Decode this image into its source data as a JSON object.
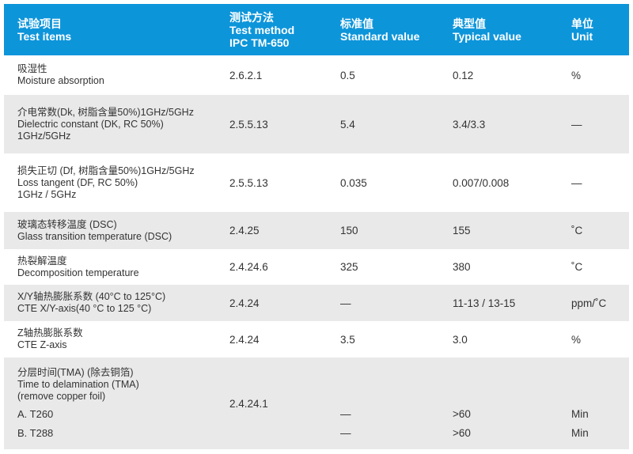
{
  "header": {
    "item_cn": "试验项目",
    "item_en": "Test items",
    "method_cn": "测试方法",
    "method_en": "Test method",
    "method_std": "IPC TM-650",
    "standard_cn": "标准值",
    "standard_en": "Standard value",
    "typical_cn": "典型值",
    "typical_en": "Typical value",
    "unit_cn": "单位",
    "unit_en": "Unit"
  },
  "colors": {
    "header_bg": "#0d95da",
    "stripe": "#e9e9e9"
  },
  "rows": [
    {
      "item": [
        "吸湿性",
        "Moisture absorption"
      ],
      "method": "2.6.2.1",
      "standard": "0.5",
      "typical": "0.12",
      "unit": "%"
    },
    {
      "item": [
        "介电常数(Dk, 树脂含量50%)1GHz/5GHz",
        "Dielectric constant (DK, RC 50%)",
        "1GHz/5GHz"
      ],
      "method": "2.5.5.13",
      "standard": "5.4",
      "typical": "3.4/3.3",
      "unit": "—"
    },
    {
      "item": [
        "损失正切 (Df, 树脂含量50%)1GHz/5GHz",
        "Loss tangent (DF, RC 50%)",
        "1GHz / 5GHz"
      ],
      "method": "2.5.5.13",
      "standard": "0.035",
      "typical": "0.007/0.008",
      "unit": "—"
    },
    {
      "item": [
        "玻璃态转移温度 (DSC)",
        "Glass transition temperature (DSC)"
      ],
      "method": "2.4.25",
      "standard": "150",
      "typical": "155",
      "unit": "˚C"
    },
    {
      "item": [
        "热裂解温度",
        "Decomposition temperature"
      ],
      "method": "2.4.24.6",
      "standard": "325",
      "typical": "380",
      "unit": "˚C"
    },
    {
      "item": [
        "X/Y轴热膨胀系数 (40°C to 125°C)",
        "CTE X/Y-axis(40 °C to 125 °C)"
      ],
      "method": "2.4.24",
      "standard": "—",
      "typical": "11-13 / 13-15",
      "unit": "ppm/˚C"
    },
    {
      "item": [
        "Z轴热膨胀系数",
        "CTE Z-axis"
      ],
      "method": "2.4.24",
      "standard": "3.5",
      "typical": "3.0",
      "unit": "%"
    },
    {
      "item": [
        "分层时间(TMA) (除去铜箔)",
        "Time to delamination (TMA)",
        "(remove copper foil)"
      ],
      "method": "2.4.24.1",
      "subs": [
        {
          "label": "A. T260",
          "standard": "—",
          "typical": ">60",
          "unit": "Min"
        },
        {
          "label": "B. T288",
          "standard": "—",
          "typical": ">60",
          "unit": "Min"
        }
      ]
    }
  ]
}
